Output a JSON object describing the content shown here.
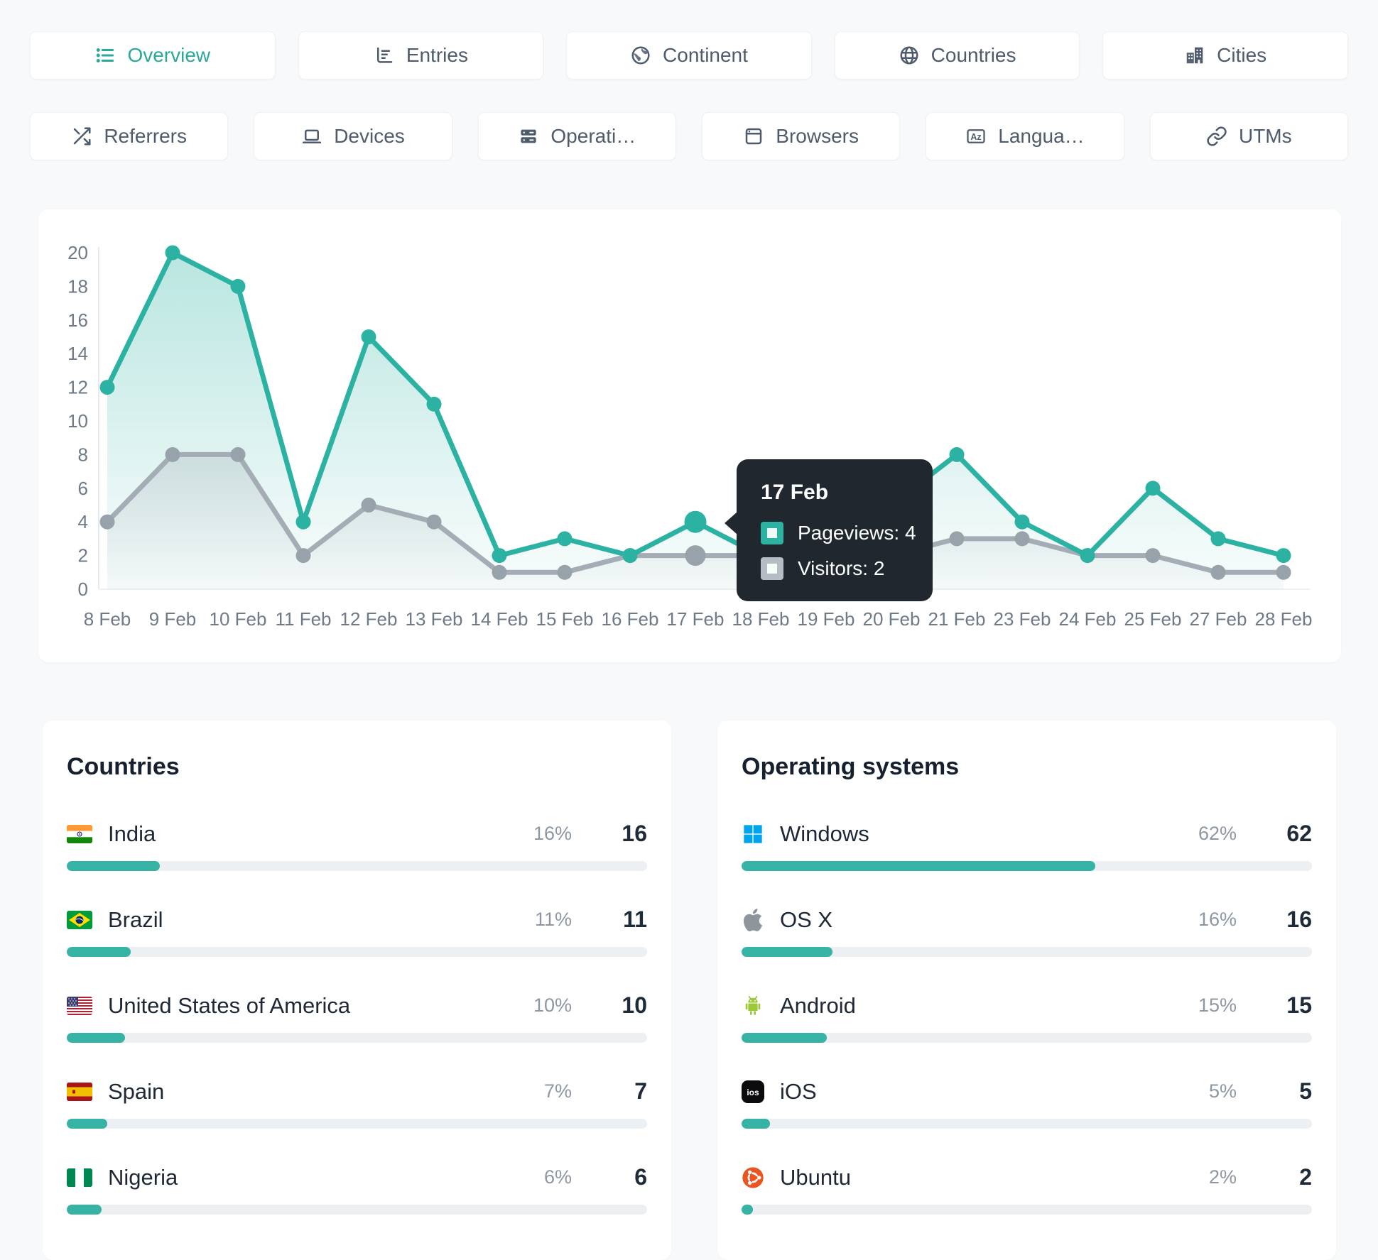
{
  "tabs_row1": [
    {
      "label": "Overview",
      "icon": "list-icon",
      "active": true
    },
    {
      "label": "Entries",
      "icon": "bar-chart-icon",
      "active": false
    },
    {
      "label": "Continent",
      "icon": "earth-icon",
      "active": false
    },
    {
      "label": "Countries",
      "icon": "globe-icon",
      "active": false
    },
    {
      "label": "Cities",
      "icon": "buildings-icon",
      "active": false
    }
  ],
  "tabs_row2": [
    {
      "label": "Referrers",
      "icon": "shuffle-icon",
      "active": false
    },
    {
      "label": "Devices",
      "icon": "laptop-icon",
      "active": false
    },
    {
      "label": "Operati…",
      "icon": "server-icon",
      "active": false
    },
    {
      "label": "Browsers",
      "icon": "browser-window-icon",
      "active": false
    },
    {
      "label": "Langua…",
      "icon": "alphabet-icon",
      "active": false
    },
    {
      "label": "UTMs",
      "icon": "link-icon",
      "active": false
    }
  ],
  "chart_data": {
    "type": "line",
    "x": [
      "8 Feb",
      "9 Feb",
      "10 Feb",
      "11 Feb",
      "12 Feb",
      "13 Feb",
      "14 Feb",
      "15 Feb",
      "16 Feb",
      "17 Feb",
      "18 Feb",
      "19 Feb",
      "20 Feb",
      "21 Feb",
      "23 Feb",
      "24 Feb",
      "25 Feb",
      "27 Feb",
      "28 Feb"
    ],
    "series": [
      {
        "name": "Pageviews",
        "color": "#2cb2a2",
        "values": [
          12,
          20,
          18,
          4,
          15,
          11,
          2,
          3,
          2,
          4,
          2,
          2,
          5,
          8,
          4,
          2,
          6,
          3,
          2
        ]
      },
      {
        "name": "Visitors",
        "color": "#a4adb5",
        "values": [
          4,
          8,
          8,
          2,
          5,
          4,
          1,
          1,
          2,
          2,
          2,
          1,
          2,
          3,
          3,
          2,
          2,
          1,
          1
        ]
      }
    ],
    "ylim": [
      0,
      20
    ],
    "ytick_step": 2,
    "active_index": 9,
    "grid": false,
    "legend_position": "tooltip-only"
  },
  "tooltip": {
    "date": "17 Feb",
    "rows": [
      {
        "label": "Pageviews",
        "value": "4",
        "text": "Pageviews: 4",
        "color": "#2cb2a2"
      },
      {
        "label": "Visitors",
        "value": "2",
        "text": "Visitors: 2",
        "color": "#b5bcc3"
      }
    ]
  },
  "panels": {
    "countries": {
      "title": "Countries",
      "items": [
        {
          "name": "India",
          "flag": "india-flag-icon",
          "percent": "16%",
          "value": "16"
        },
        {
          "name": "Brazil",
          "flag": "brazil-flag-icon",
          "percent": "11%",
          "value": "11"
        },
        {
          "name": "United States of America",
          "flag": "usa-flag-icon",
          "percent": "10%",
          "value": "10"
        },
        {
          "name": "Spain",
          "flag": "spain-flag-icon",
          "percent": "7%",
          "value": "7"
        },
        {
          "name": "Nigeria",
          "flag": "nigeria-flag-icon",
          "percent": "6%",
          "value": "6"
        }
      ]
    },
    "operating_systems": {
      "title": "Operating systems",
      "items": [
        {
          "name": "Windows",
          "icon": "windows-icon",
          "percent": "62%",
          "value": "62"
        },
        {
          "name": "OS X",
          "icon": "apple-icon",
          "percent": "16%",
          "value": "16"
        },
        {
          "name": "Android",
          "icon": "android-icon",
          "percent": "15%",
          "value": "15"
        },
        {
          "name": "iOS",
          "icon": "ios-icon",
          "percent": "5%",
          "value": "5"
        },
        {
          "name": "Ubuntu",
          "icon": "ubuntu-icon",
          "percent": "2%",
          "value": "2"
        }
      ]
    }
  },
  "colors": {
    "accent": "#2cb2a2",
    "visitors_line": "#a4adb5",
    "tooltip_bg": "#21272f",
    "page_bg": "#f7f9fa",
    "bar_track": "#edf0f2",
    "bar_fill": "#36b3a4"
  }
}
